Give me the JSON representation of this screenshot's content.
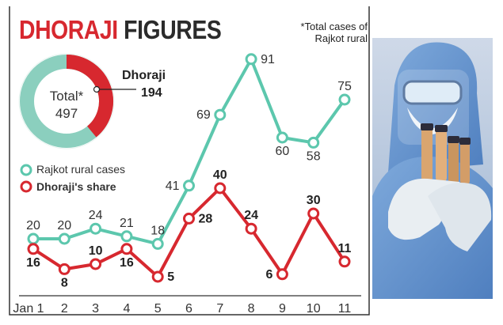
{
  "header": {
    "title_part1": "DHORAJI",
    "title_part2": "FIGURES",
    "footnote_line1": "*Total cases of",
    "footnote_line2": "Rajkot rural"
  },
  "donut": {
    "total_label": "Total*",
    "total_value": "497",
    "callout_name": "Dhoraji",
    "callout_value": "194",
    "share_value": 194,
    "total_numeric": 497
  },
  "legend": {
    "rajkot_label": "Rajkot rural cases",
    "dhoraji_label": "Dhoraji's share"
  },
  "colors": {
    "teal": "#5cc7ad",
    "red": "#d7282f",
    "donut_bg": "#8bcfbe",
    "title_red": "#d7282f",
    "photo_blue": "#6f9fd3"
  },
  "chart_data": {
    "type": "line",
    "categories": [
      "Jan 1",
      "2",
      "3",
      "4",
      "5",
      "6",
      "7",
      "8",
      "9",
      "10",
      "11"
    ],
    "series": [
      {
        "name": "Rajkot rural cases",
        "values": [
          20,
          20,
          24,
          21,
          18,
          41,
          69,
          91,
          60,
          58,
          75
        ]
      },
      {
        "name": "Dhoraji's share",
        "values": [
          16,
          8,
          10,
          16,
          5,
          28,
          40,
          24,
          6,
          30,
          11
        ]
      }
    ],
    "title": "DHORAJI FIGURES",
    "xlabel": "",
    "ylabel": "",
    "grid": false
  }
}
